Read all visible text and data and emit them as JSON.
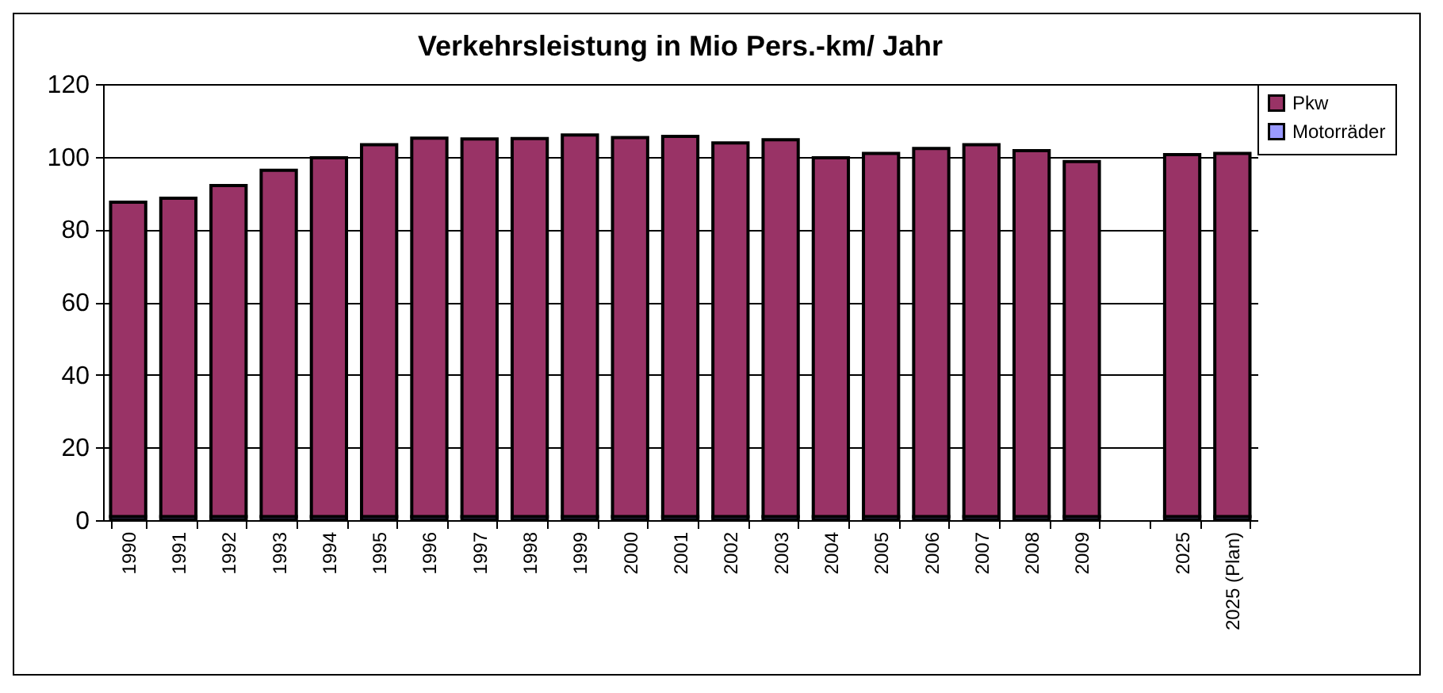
{
  "chart_data": {
    "type": "bar",
    "title": "Verkehrsleistung in Mio Pers.-km/ Jahr",
    "categories": [
      "1990",
      "1991",
      "1992",
      "1993",
      "1994",
      "1995",
      "1996",
      "1997",
      "1998",
      "1999",
      "2000",
      "2001",
      "2002",
      "2003",
      "2004",
      "2005",
      "2006",
      "2007",
      "2008",
      "2009",
      null,
      "2025",
      "2025 (Plan)"
    ],
    "stacked": true,
    "series": [
      {
        "name": "Motorräder",
        "color": "#9999ff",
        "values": [
          1,
          1,
          1,
          1,
          1,
          1,
          1,
          1,
          1,
          1,
          1,
          1,
          1,
          1,
          1,
          1,
          1,
          1,
          1,
          1,
          null,
          1,
          1
        ]
      },
      {
        "name": "Pkw",
        "color": "#993366",
        "values": [
          86.5,
          87.6,
          91.1,
          95.3,
          98.7,
          102.3,
          104.1,
          103.9,
          104,
          105,
          104.3,
          104.6,
          102.8,
          103.7,
          98.7,
          99.9,
          101.3,
          102.3,
          100.7,
          97.7,
          null,
          99.6,
          99.9
        ]
      }
    ],
    "ylim": [
      0,
      120
    ],
    "yticks": [
      0,
      20,
      40,
      60,
      80,
      100,
      120
    ],
    "grid": "y",
    "legend": "right"
  }
}
